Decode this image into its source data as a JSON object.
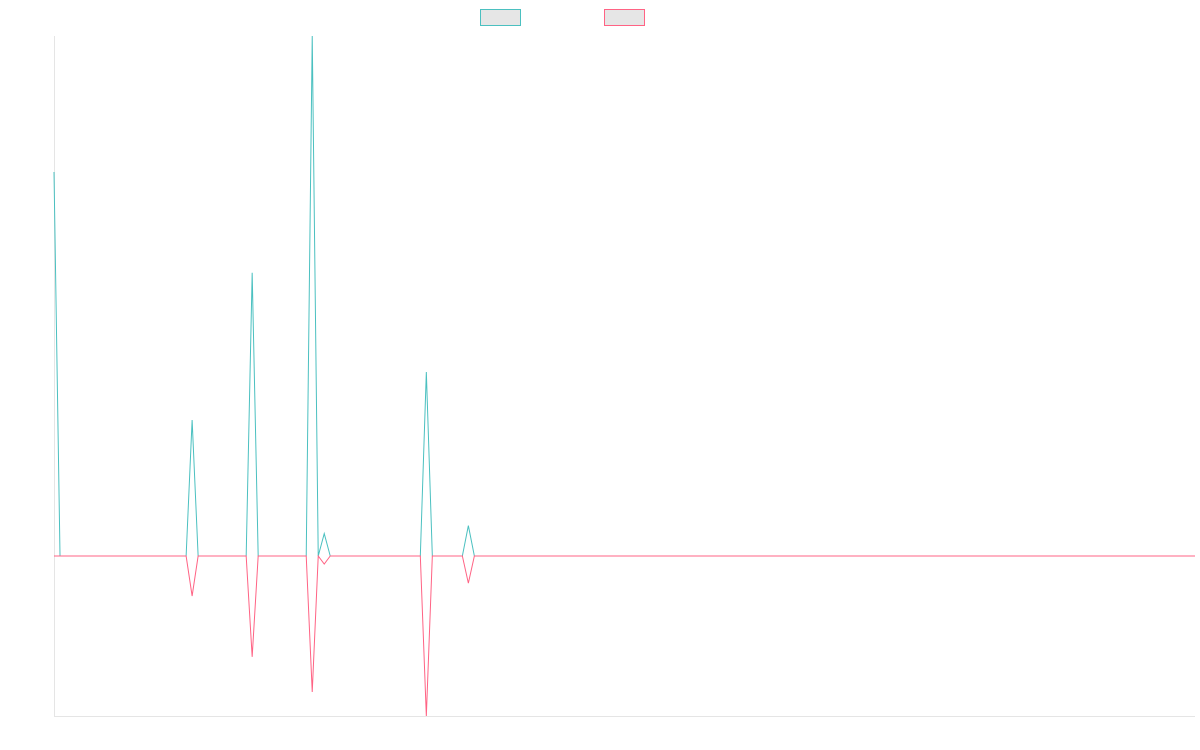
{
  "chart_data": {
    "type": "line",
    "title": "",
    "xlabel": "",
    "ylabel": "",
    "legend_position": "top",
    "grid": false,
    "x_index_range": [
      0,
      190
    ],
    "ylim": [
      -100,
      325
    ],
    "series": [
      {
        "name": "",
        "color": "#4bc0c0",
        "fill": "#e6e6e6",
        "points": [
          [
            0,
            240
          ],
          [
            1,
            0
          ],
          [
            22,
            0
          ],
          [
            23,
            85
          ],
          [
            24,
            0
          ],
          [
            32,
            0
          ],
          [
            33,
            177
          ],
          [
            34,
            0
          ],
          [
            42,
            0
          ],
          [
            43,
            325
          ],
          [
            44,
            0
          ],
          [
            45,
            14
          ],
          [
            46,
            0
          ],
          [
            61,
            0
          ],
          [
            62,
            115
          ],
          [
            63,
            0
          ],
          [
            68,
            0
          ],
          [
            69,
            19
          ],
          [
            70,
            0
          ],
          [
            190,
            0
          ]
        ]
      },
      {
        "name": "",
        "color": "#ff6384",
        "fill": "#e6e6e6",
        "points": [
          [
            0,
            0
          ],
          [
            22,
            0
          ],
          [
            23,
            -25
          ],
          [
            24,
            0
          ],
          [
            32,
            0
          ],
          [
            33,
            -63
          ],
          [
            34,
            0
          ],
          [
            42,
            0
          ],
          [
            43,
            -85
          ],
          [
            44,
            0
          ],
          [
            45,
            -5
          ],
          [
            46,
            0
          ],
          [
            61,
            0
          ],
          [
            62,
            -100
          ],
          [
            63,
            0
          ],
          [
            68,
            0
          ],
          [
            69,
            -17
          ],
          [
            70,
            0
          ],
          [
            190,
            0
          ]
        ]
      }
    ]
  }
}
